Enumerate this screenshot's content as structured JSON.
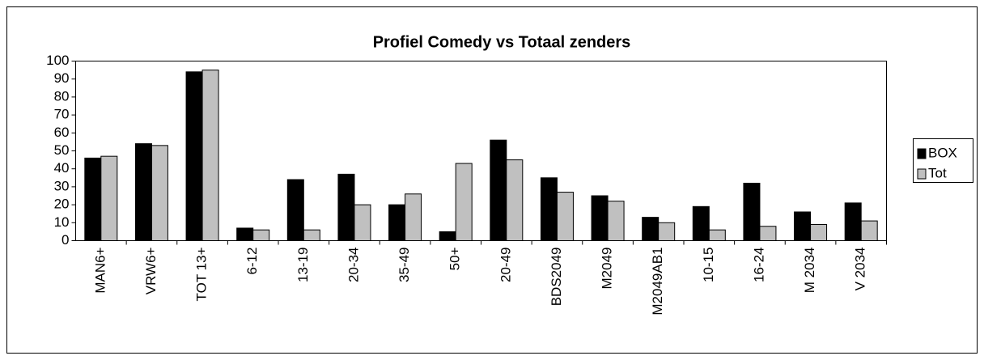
{
  "chart_data": {
    "type": "bar",
    "title": "Profiel Comedy vs Totaal zenders",
    "categories": [
      "MAN6+",
      "VRW6+",
      "TOT 13+",
      "6-12",
      "13-19",
      "20-34",
      "35-49",
      "50+",
      "20-49",
      "BDS2049",
      "M2049",
      "M2049AB1",
      "10-15",
      "16-24",
      "M 2034",
      "V 2034"
    ],
    "series": [
      {
        "name": "BOX",
        "color": "#000000",
        "values": [
          46,
          54,
          94,
          7,
          34,
          37,
          20,
          5,
          56,
          35,
          25,
          13,
          19,
          32,
          16,
          21
        ]
      },
      {
        "name": "Tot",
        "color": "#c0c0c0",
        "values": [
          47,
          53,
          95,
          6,
          6,
          20,
          26,
          43,
          45,
          27,
          22,
          10,
          6,
          8,
          9,
          11
        ]
      }
    ],
    "ylim": [
      0,
      100
    ],
    "yticks": [
      0,
      10,
      20,
      30,
      40,
      50,
      60,
      70,
      80,
      90,
      100
    ],
    "grid": false,
    "legend": "right"
  }
}
